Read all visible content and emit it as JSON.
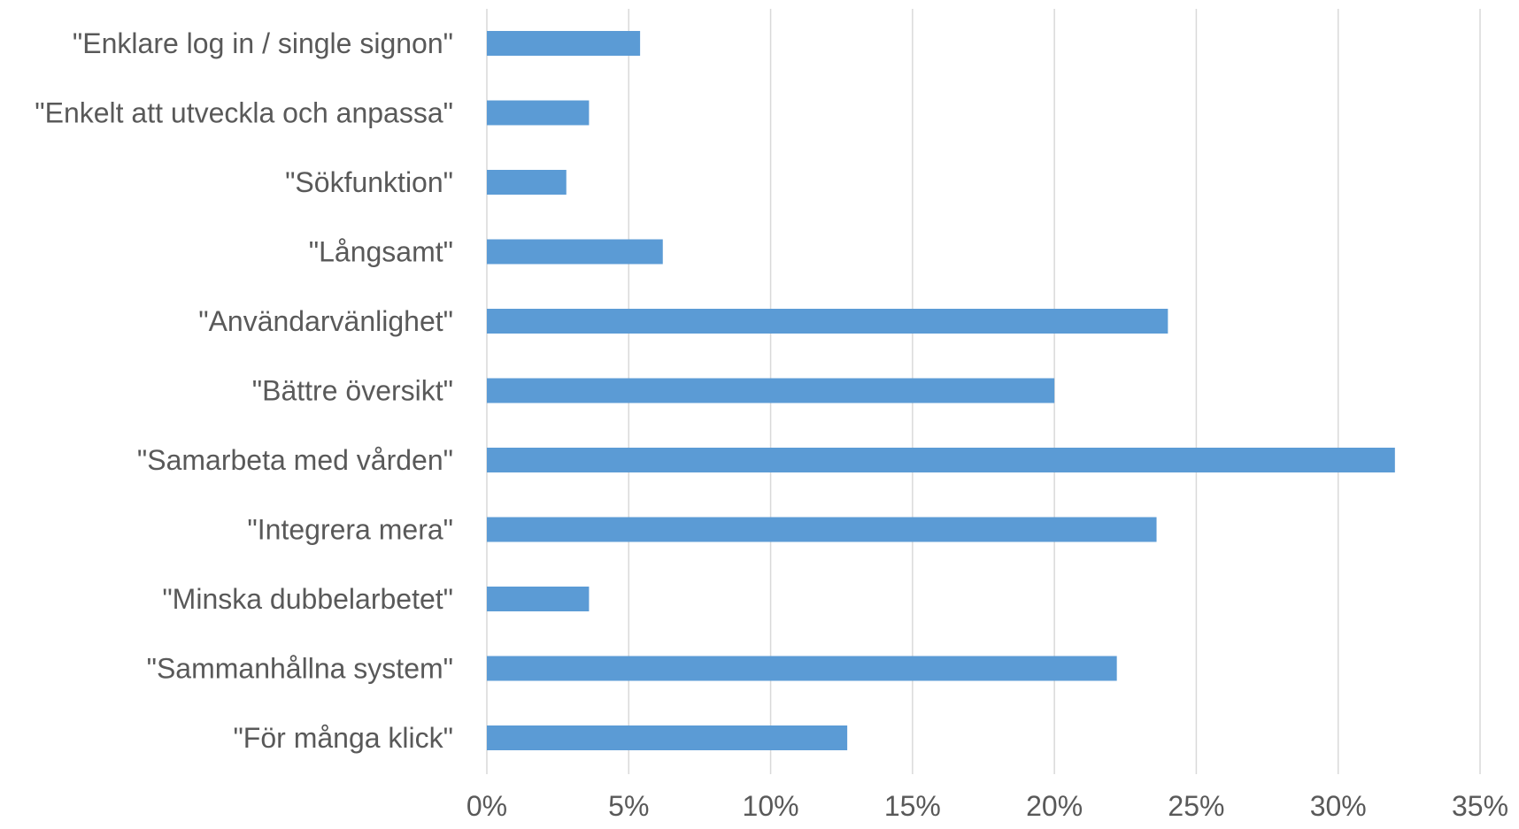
{
  "chart_data": {
    "type": "bar",
    "orientation": "horizontal",
    "title": "",
    "xlabel": "",
    "ylabel": "",
    "categories": [
      "\"Enklare log in / single signon\"",
      "\"Enkelt att utveckla och anpassa\"",
      "\"Sökfunktion\"",
      "\"Långsamt\"",
      "\"Användarvänlighet\"",
      "\"Bättre översikt\"",
      "\"Samarbeta med vården\"",
      "\"Integrera mera\"",
      "\"Minska dubbelarbetet\"",
      "\"Sammanhållna system\"",
      "\"För många klick\""
    ],
    "values": [
      5.4,
      3.6,
      2.8,
      6.2,
      24.0,
      20.0,
      32.0,
      23.6,
      3.6,
      22.2,
      12.7
    ],
    "xlim": [
      0,
      35
    ],
    "ticks": [
      0,
      5,
      10,
      15,
      20,
      25,
      30,
      35
    ],
    "tick_labels": [
      "0%",
      "5%",
      "10%",
      "15%",
      "20%",
      "25%",
      "30%",
      "35%"
    ],
    "grid": true,
    "legend": "none",
    "bar_color": "#5b9bd5",
    "grid_color": "#d9d9d9",
    "text_color": "#595959"
  }
}
